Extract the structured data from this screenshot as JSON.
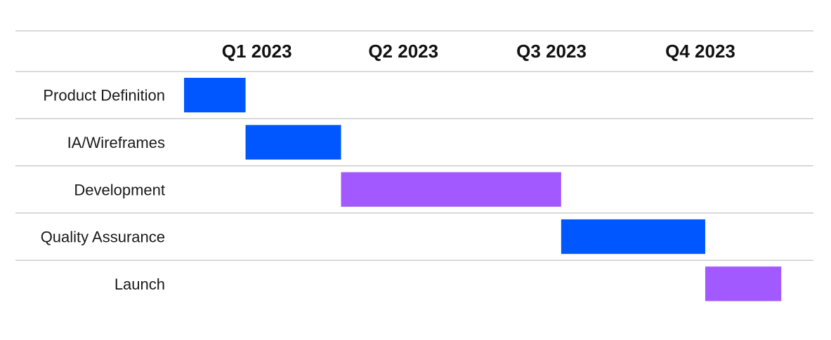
{
  "chart_data": {
    "type": "gantt",
    "title": "",
    "quarters": [
      "Q1 2023",
      "Q2 2023",
      "Q3 2023",
      "Q4 2023"
    ],
    "xlim": [
      "2023-01-01",
      "2024-01-01"
    ],
    "tasks": [
      {
        "name": "Product Definition",
        "start": "2023-01-01",
        "end": "2023-02-08",
        "color": "#0057ff"
      },
      {
        "name": "IA/Wireframes",
        "start": "2023-02-08",
        "end": "2023-04-08",
        "color": "#0057ff"
      },
      {
        "name": "Development",
        "start": "2023-04-08",
        "end": "2023-08-22",
        "color": "#a259ff"
      },
      {
        "name": "Quality Assurance",
        "start": "2023-08-22",
        "end": "2023-11-19",
        "color": "#0057ff"
      },
      {
        "name": "Launch",
        "start": "2023-11-19",
        "end": "2024-01-05",
        "color": "#a259ff"
      }
    ],
    "grid": "horizontal row separators",
    "legend": "none"
  },
  "colors": {
    "blue": "#0057ff",
    "purple": "#a259ff",
    "separator": "#b5b5b5"
  }
}
